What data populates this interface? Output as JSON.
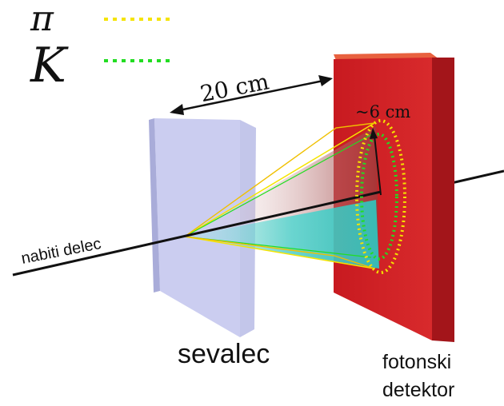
{
  "legend": {
    "pi": {
      "symbol": "π",
      "color": "#f5e400"
    },
    "kaon": {
      "symbol": "K",
      "color": "#22dd22"
    }
  },
  "labels": {
    "distance": "20 cm",
    "ring_radius": "~6 cm",
    "particle": "nabiti delec",
    "radiator": "sevalec",
    "detector_line1": "fotonski",
    "detector_line2": "detektor"
  },
  "colors": {
    "radiator_face": "#c9cbee",
    "radiator_side": "#b3b6e0",
    "detector_face": "#d21f24",
    "detector_side": "#a8171b",
    "detector_top": "#e24a3f",
    "cone_cyan": "#55e0d8",
    "cone_red": "#c05050"
  }
}
